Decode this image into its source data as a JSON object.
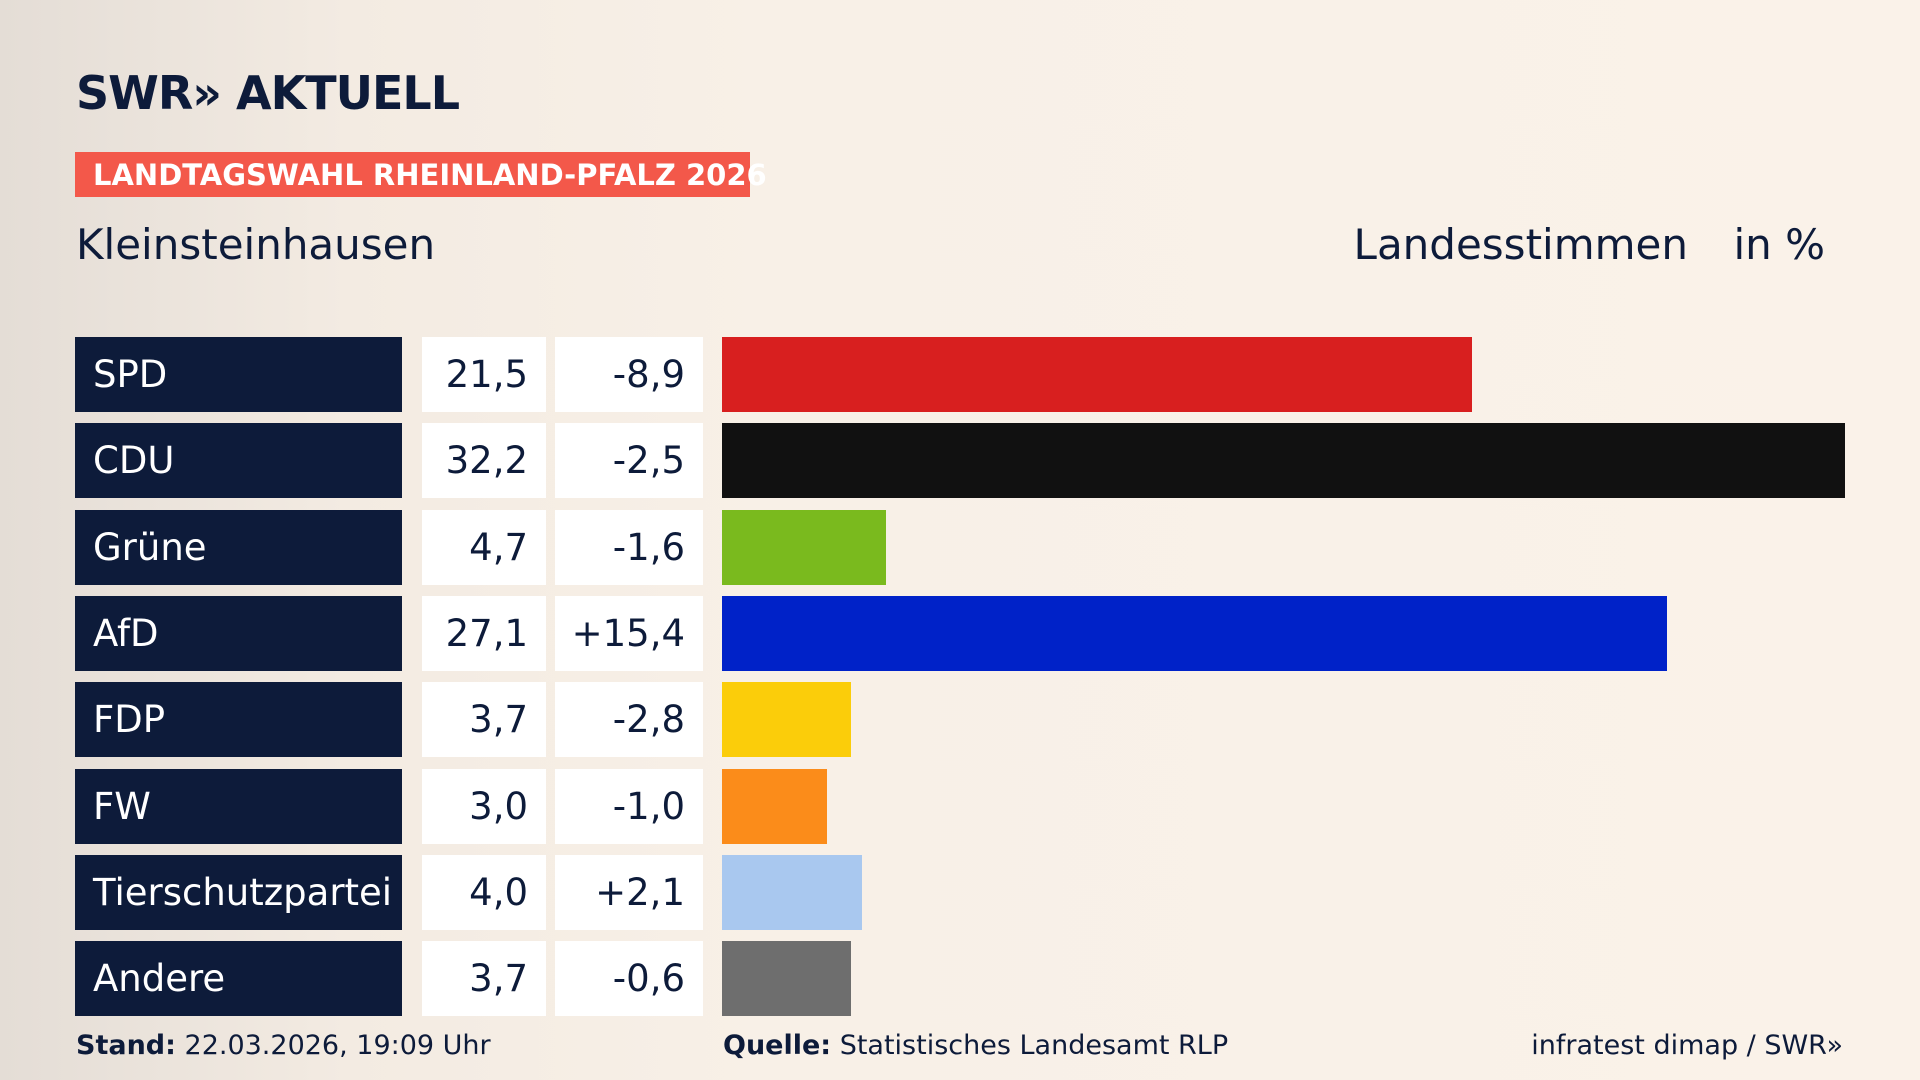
{
  "chart_data": {
    "type": "bar",
    "logo": "SWR» AKTUELL",
    "subtitle": "LANDTAGSWAHL RHEINLAND-PFALZ 2026",
    "title": "Kleinsteinhausen",
    "measure": "Landesstimmen",
    "unit": "in %",
    "categories": [
      "SPD",
      "CDU",
      "Grüne",
      "AfD",
      "FDP",
      "FW",
      "Tierschutzpartei",
      "Andere"
    ],
    "values": [
      21.5,
      32.2,
      4.7,
      27.1,
      3.7,
      3.0,
      4.0,
      3.7
    ],
    "value_labels": [
      "21,5",
      "32,2",
      "4,7",
      "27,1",
      "3,7",
      "3,0",
      "4,0",
      "3,7"
    ],
    "changes": [
      "-8,9",
      "-2,5",
      "-1,6",
      "+15,4",
      "-2,8",
      "-1,0",
      "+2,1",
      "-0,6"
    ],
    "colors": [
      "#d81f1f",
      "#111111",
      "#7aba1e",
      "#0022c8",
      "#fbcd0a",
      "#fb8c1a",
      "#a9c8ef",
      "#6e6e6e"
    ],
    "footer": {
      "stand_label": "Stand:",
      "stand": "22.03.2026, 19:09 Uhr",
      "source_label": "Quelle:",
      "source": "Statistisches Landesamt RLP",
      "credit": "infratest dimap / SWR»"
    }
  }
}
